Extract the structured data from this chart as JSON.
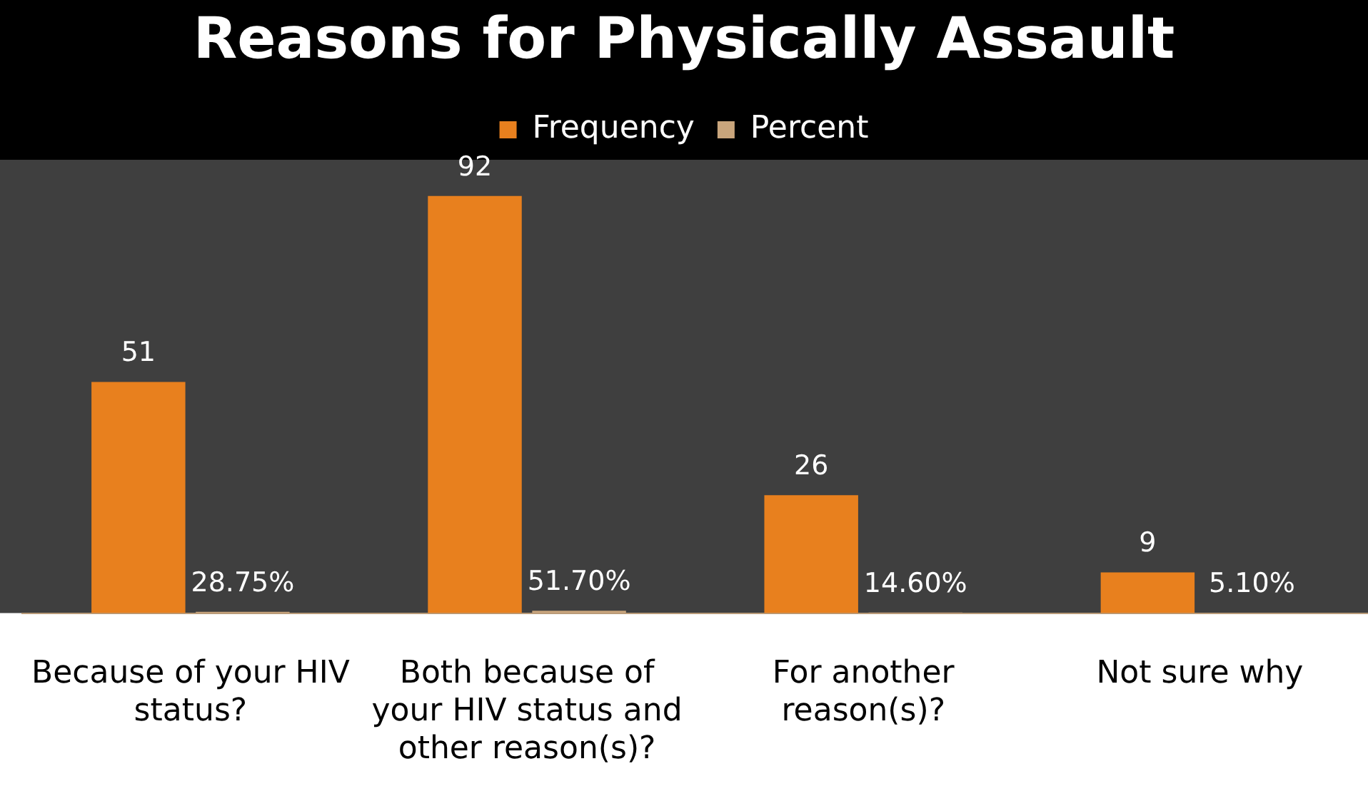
{
  "chart_data": {
    "type": "bar",
    "title": "Reasons for Physically Assault",
    "categories": [
      "Because of your HIV status?",
      "Both because of your HIV status and other reason(s)?",
      "For another reason(s)?",
      "Not sure why"
    ],
    "series": [
      {
        "name": "Frequency",
        "color": "#e8801e",
        "values": [
          51,
          92,
          26,
          9
        ],
        "value_labels": [
          "51",
          "92",
          "26",
          "9"
        ]
      },
      {
        "name": "Percent",
        "color": "#c9a57c",
        "values": [
          0.2875,
          0.517,
          0.146,
          0.051
        ],
        "value_labels": [
          "28.75%",
          "51.70%",
          "14.60%",
          "5.10%"
        ]
      }
    ],
    "legend": "top",
    "grid": false
  }
}
